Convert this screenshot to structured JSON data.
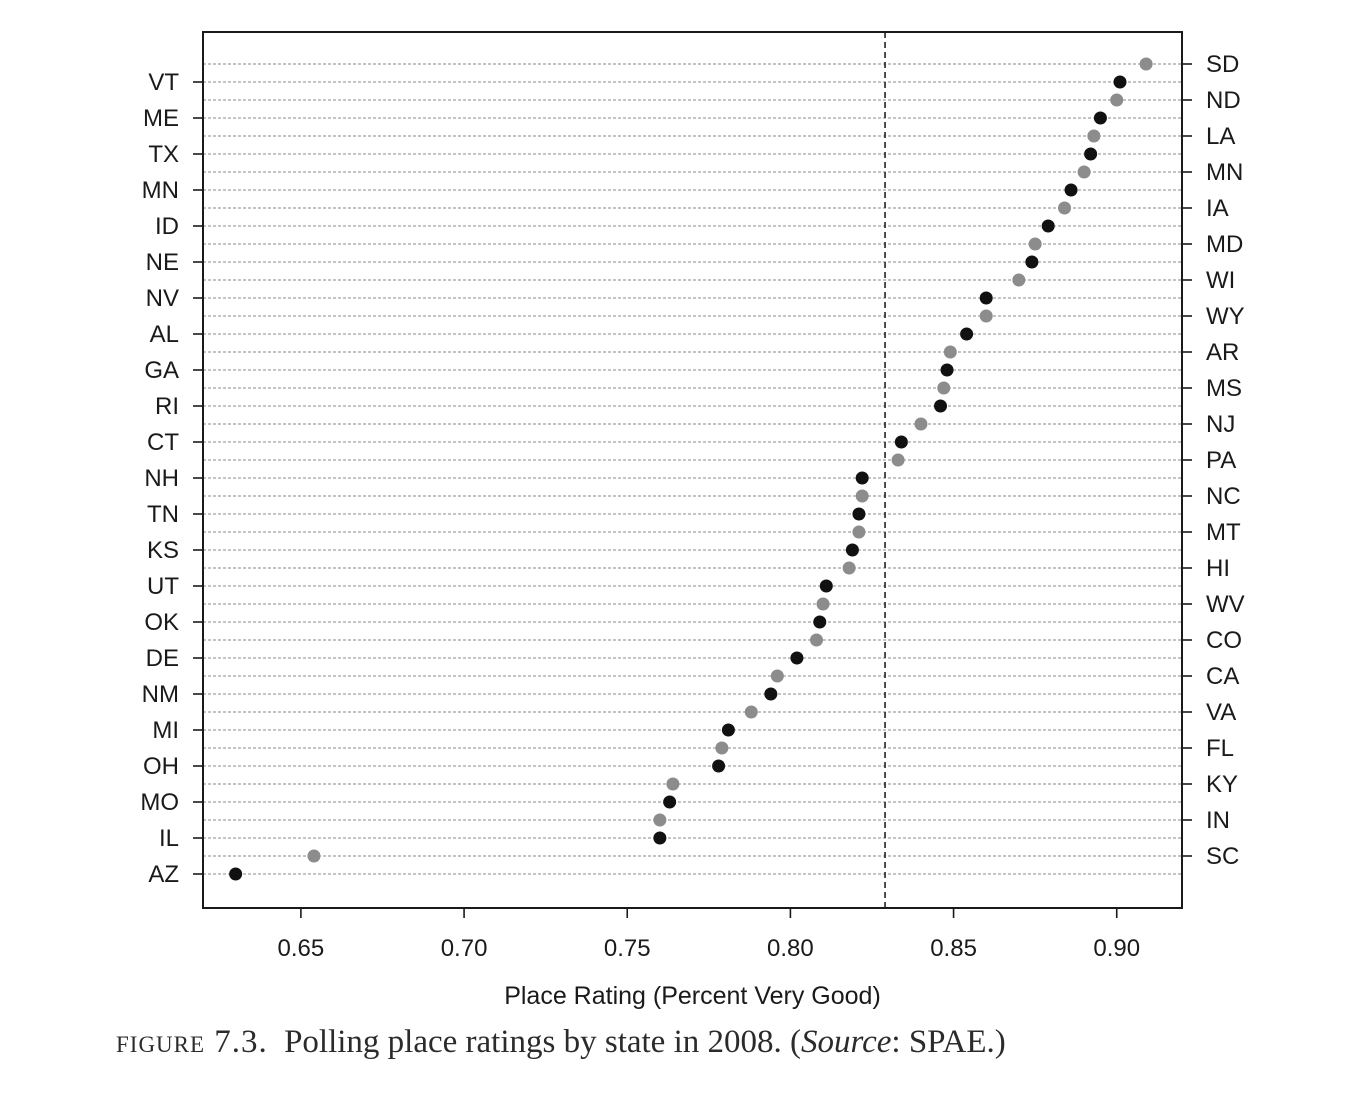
{
  "chart_data": {
    "type": "scatter",
    "xlabel": "Place Rating (Percent Very Good)",
    "xlim": [
      0.62,
      0.92
    ],
    "xticks": [
      "0.65",
      "0.70",
      "0.75",
      "0.80",
      "0.85",
      "0.90"
    ],
    "reference_line_x": 0.829,
    "colors": {
      "left_series": "#111111",
      "right_series": "#8c8c8c"
    },
    "series": [
      {
        "points": [
          {
            "state": "VT",
            "value": 0.901
          },
          {
            "state": "ME",
            "value": 0.895
          },
          {
            "state": "TX",
            "value": 0.892
          },
          {
            "state": "MN",
            "value": 0.886
          },
          {
            "state": "ID",
            "value": 0.879
          },
          {
            "state": "NE",
            "value": 0.874
          },
          {
            "state": "NV",
            "value": 0.86
          },
          {
            "state": "AL",
            "value": 0.854
          },
          {
            "state": "GA",
            "value": 0.848
          },
          {
            "state": "RI",
            "value": 0.846
          },
          {
            "state": "CT",
            "value": 0.834
          },
          {
            "state": "NH",
            "value": 0.822
          },
          {
            "state": "TN",
            "value": 0.821
          },
          {
            "state": "KS",
            "value": 0.819
          },
          {
            "state": "UT",
            "value": 0.811
          },
          {
            "state": "OK",
            "value": 0.809
          },
          {
            "state": "DE",
            "value": 0.802
          },
          {
            "state": "NM",
            "value": 0.794
          },
          {
            "state": "MI",
            "value": 0.781
          },
          {
            "state": "OH",
            "value": 0.778
          },
          {
            "state": "MO",
            "value": 0.763
          },
          {
            "state": "IL",
            "value": 0.76
          },
          {
            "state": "AZ",
            "value": 0.63
          }
        ]
      },
      {
        "points": [
          {
            "state": "SD",
            "value": 0.909
          },
          {
            "state": "ND",
            "value": 0.9
          },
          {
            "state": "LA",
            "value": 0.893
          },
          {
            "state": "MN",
            "value": 0.89
          },
          {
            "state": "IA",
            "value": 0.884
          },
          {
            "state": "MD",
            "value": 0.875
          },
          {
            "state": "WI",
            "value": 0.87
          },
          {
            "state": "WY",
            "value": 0.86
          },
          {
            "state": "AR",
            "value": 0.849
          },
          {
            "state": "MS",
            "value": 0.847
          },
          {
            "state": "NJ",
            "value": 0.84
          },
          {
            "state": "PA",
            "value": 0.833
          },
          {
            "state": "NC",
            "value": 0.822
          },
          {
            "state": "MT",
            "value": 0.821
          },
          {
            "state": "HI",
            "value": 0.818
          },
          {
            "state": "WV",
            "value": 0.81
          },
          {
            "state": "CO",
            "value": 0.808
          },
          {
            "state": "CA",
            "value": 0.796
          },
          {
            "state": "VA",
            "value": 0.788
          },
          {
            "state": "FL",
            "value": 0.779
          },
          {
            "state": "KY",
            "value": 0.764
          },
          {
            "state": "IN",
            "value": 0.76
          },
          {
            "state": "SC",
            "value": 0.654
          }
        ]
      }
    ]
  },
  "caption": {
    "lead": "figure 7.3.",
    "text_before": "Polling place ratings by state in 2008. (",
    "source_word": "Source",
    "text_after": ": SPAE.)"
  }
}
